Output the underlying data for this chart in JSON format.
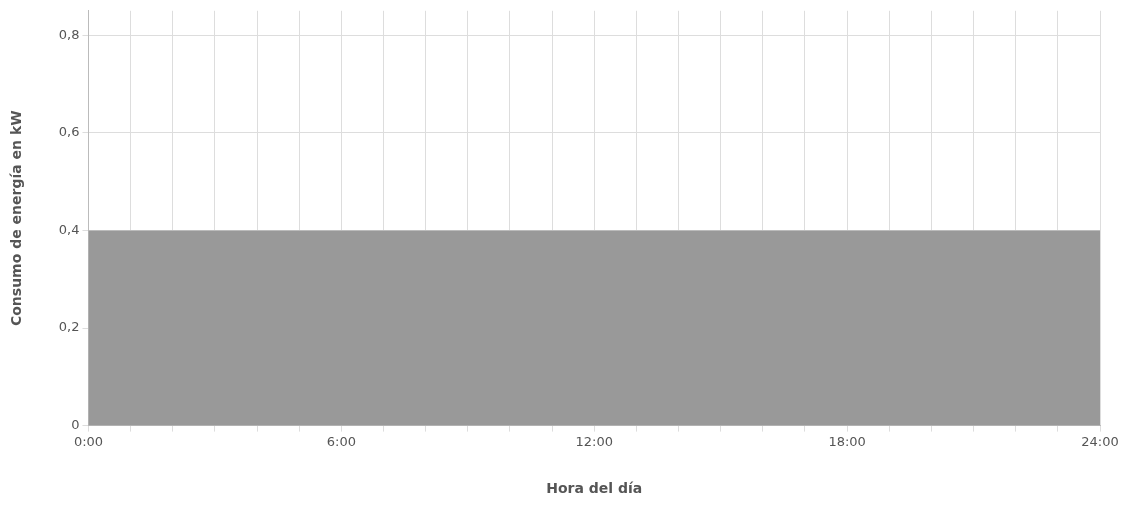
{
  "chart_data": {
    "type": "area",
    "xlabel": "Hora del día",
    "ylabel": "Consumo de energía en kW",
    "x": [
      0,
      24
    ],
    "series": [
      {
        "color": "#999999",
        "values": [
          0.4,
          0.4
        ]
      }
    ],
    "xlim": [
      0,
      24
    ],
    "xticks": [
      {
        "value": 0,
        "label": "0:00"
      },
      {
        "value": 1,
        "label": null
      },
      {
        "value": 2,
        "label": null
      },
      {
        "value": 3,
        "label": null
      },
      {
        "value": 4,
        "label": null
      },
      {
        "value": 5,
        "label": null
      },
      {
        "value": 6,
        "label": "6:00"
      },
      {
        "value": 7,
        "label": null
      },
      {
        "value": 8,
        "label": null
      },
      {
        "value": 9,
        "label": null
      },
      {
        "value": 10,
        "label": null
      },
      {
        "value": 11,
        "label": null
      },
      {
        "value": 12,
        "label": "12:00"
      },
      {
        "value": 13,
        "label": null
      },
      {
        "value": 14,
        "label": null
      },
      {
        "value": 15,
        "label": null
      },
      {
        "value": 16,
        "label": null
      },
      {
        "value": 17,
        "label": null
      },
      {
        "value": 18,
        "label": "18:00"
      },
      {
        "value": 19,
        "label": null
      },
      {
        "value": 20,
        "label": null
      },
      {
        "value": 21,
        "label": null
      },
      {
        "value": 22,
        "label": null
      },
      {
        "value": 23,
        "label": null
      },
      {
        "value": 24,
        "label": "24:00"
      }
    ],
    "ylim": [
      0,
      0.85
    ],
    "yticks": [
      0,
      {
        "value": 0.2,
        "label": "0,2"
      },
      {
        "value": 0.4,
        "label": "0,4"
      },
      {
        "value": 0.6,
        "label": "0,6"
      },
      {
        "value": 0.8,
        "label": "0,8"
      }
    ],
    "grid": true,
    "legend": false
  }
}
